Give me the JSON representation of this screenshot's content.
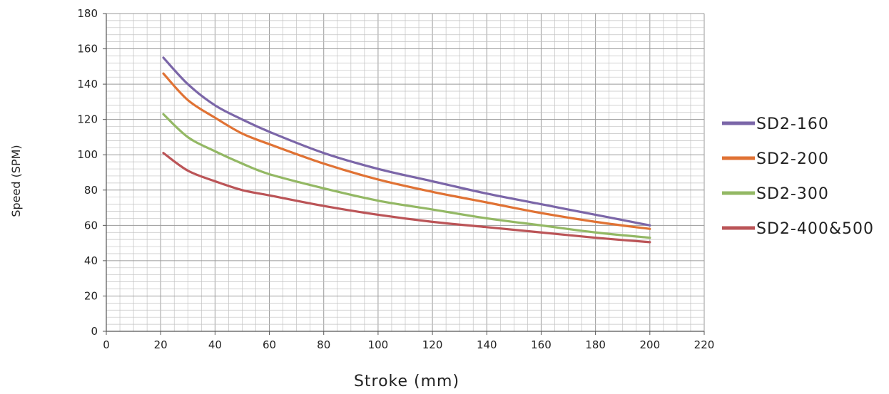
{
  "chart_data": {
    "type": "line",
    "title": "",
    "xlabel": "Stroke  (mm)",
    "ylabel": "Speed (SPM)",
    "xlim": [
      0,
      220
    ],
    "ylim": [
      0,
      180
    ],
    "xticks": [
      0,
      20,
      40,
      60,
      80,
      100,
      120,
      140,
      160,
      180,
      200,
      220
    ],
    "yticks": [
      0,
      20,
      40,
      60,
      80,
      100,
      120,
      140,
      160,
      180
    ],
    "grid": true,
    "legend_position": "right",
    "series": [
      {
        "name": "SD2-160",
        "color": "#7b66a8",
        "x": [
          21,
          30,
          40,
          50,
          60,
          80,
          100,
          120,
          140,
          160,
          180,
          200
        ],
        "y": [
          155,
          140,
          128,
          120,
          113,
          101,
          92,
          85,
          78,
          72,
          66,
          60
        ]
      },
      {
        "name": "SD2-200",
        "color": "#e07234",
        "x": [
          21,
          30,
          40,
          50,
          60,
          80,
          100,
          120,
          140,
          160,
          180,
          200
        ],
        "y": [
          146,
          131,
          121,
          112,
          106,
          95,
          86,
          79,
          73,
          67,
          62,
          58
        ]
      },
      {
        "name": "SD2-300",
        "color": "#93b864",
        "x": [
          21,
          30,
          40,
          50,
          60,
          80,
          100,
          120,
          140,
          160,
          180,
          200
        ],
        "y": [
          123,
          110,
          102,
          95,
          89,
          81,
          74,
          69,
          64,
          60,
          56,
          53
        ]
      },
      {
        "name": "SD2-400&500",
        "color": "#bb5457",
        "x": [
          21,
          30,
          40,
          50,
          60,
          80,
          100,
          120,
          140,
          160,
          180,
          200
        ],
        "y": [
          101,
          91,
          85,
          80,
          77,
          71,
          66,
          62,
          59,
          56,
          53,
          50.5
        ]
      }
    ]
  }
}
